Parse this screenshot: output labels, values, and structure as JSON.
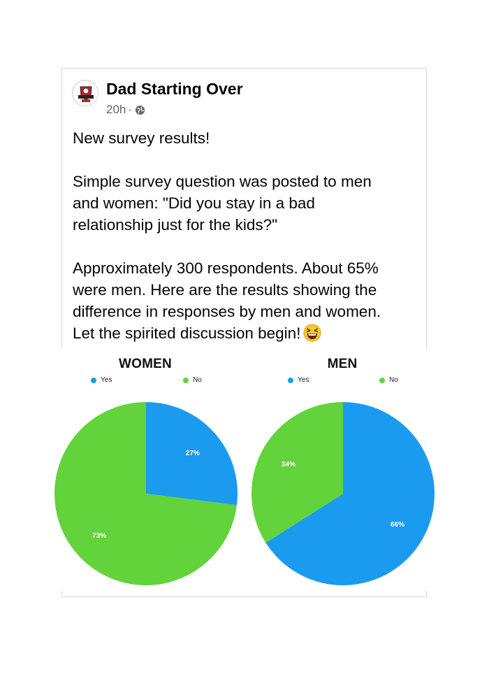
{
  "post": {
    "author": "Dad Starting Over",
    "time": "20h",
    "separator": "·",
    "lines_intro": [
      "New survey results!"
    ],
    "lines_question": [
      "Simple survey question was posted to men",
      "and women: \"Did you stay in a bad",
      "relationship just for the kids?\""
    ],
    "lines_details": [
      "Approximately 300 respondents. About 65%",
      "were men. Here are the results showing the",
      "difference in responses by men and women.",
      "Let the spirited discussion begin!"
    ],
    "emoji": "laughing-face-emoji",
    "avatar_icon": "dad-starting-over-logo-icon",
    "privacy_icon": "globe-icon"
  },
  "colors": {
    "yes": "#1a9bf0",
    "no": "#62d33a",
    "label": "#ffffff"
  },
  "chart_data": [
    {
      "type": "pie",
      "title": "WOMEN",
      "legend": [
        "Yes",
        "No"
      ],
      "legend_placement": "top",
      "categories": [
        "Yes",
        "No"
      ],
      "values": [
        27,
        73
      ],
      "labels": [
        "27%",
        "73%"
      ]
    },
    {
      "type": "pie",
      "title": "MEN",
      "legend": [
        "Yes",
        "No"
      ],
      "legend_placement": "top",
      "categories": [
        "Yes",
        "No"
      ],
      "values": [
        66,
        34
      ],
      "labels": [
        "66%",
        "34%"
      ]
    }
  ]
}
